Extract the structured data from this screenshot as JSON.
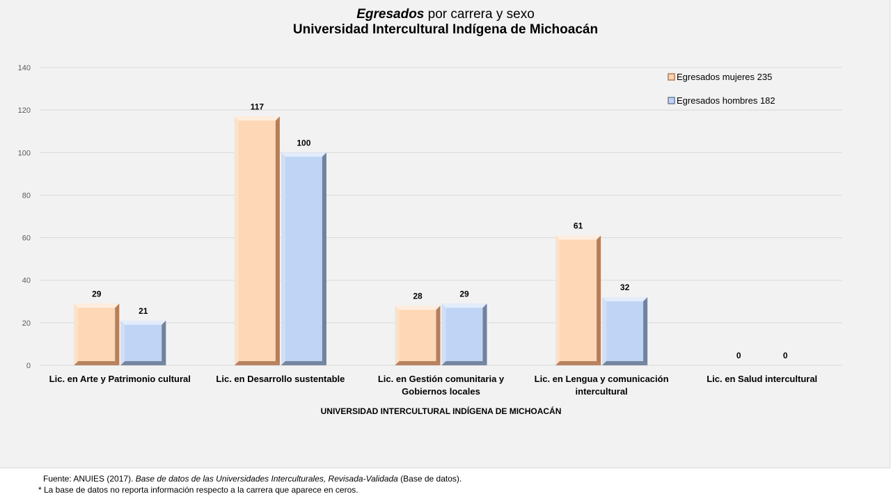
{
  "title": {
    "italic_part": "Egresados",
    "rest_part": " por carrera y sexo",
    "line2": "Universidad Intercultural Indígena de Michoacán"
  },
  "chart_data": {
    "type": "bar",
    "title": "Egresados por carrera y sexo Universidad Intercultural Indígena de Michoacán",
    "xlabel": "UNIVERSIDAD INTERCULTURAL INDÍGENA DE MICHOACÁN",
    "ylabel": "",
    "ylim": [
      0,
      140
    ],
    "yticks": [
      0,
      20,
      40,
      60,
      80,
      100,
      120,
      140
    ],
    "grid": true,
    "legend_position": "top-right",
    "categories": [
      [
        "Lic. en Arte y Patrimonio cultural"
      ],
      [
        "Lic. en Desarrollo sustentable"
      ],
      [
        "Lic. en Gestión comunitaria y",
        "Gobiernos locales"
      ],
      [
        "Lic. en Lengua y comunicación",
        "intercultural"
      ],
      [
        "Lic. en Salud intercultural"
      ]
    ],
    "series": [
      {
        "name": "Egresados mujeres 235",
        "values": [
          29,
          117,
          28,
          61,
          0
        ],
        "color": "#fdd7b6",
        "side": "#b07a56"
      },
      {
        "name": "Egresados hombres 182",
        "values": [
          21,
          100,
          29,
          32,
          0
        ],
        "color": "#c0d4f5",
        "side": "#6e7d96"
      }
    ]
  },
  "footer": {
    "source_prefix": "Fuente: ANUIES  (2017). ",
    "source_title": "Base de datos de las Universidades  Interculturales, Revisada-Validada",
    "source_suffix": "  (Base de datos).",
    "note": "* La base de datos no reporta información  respecto a la carrera  que aparece en ceros."
  }
}
